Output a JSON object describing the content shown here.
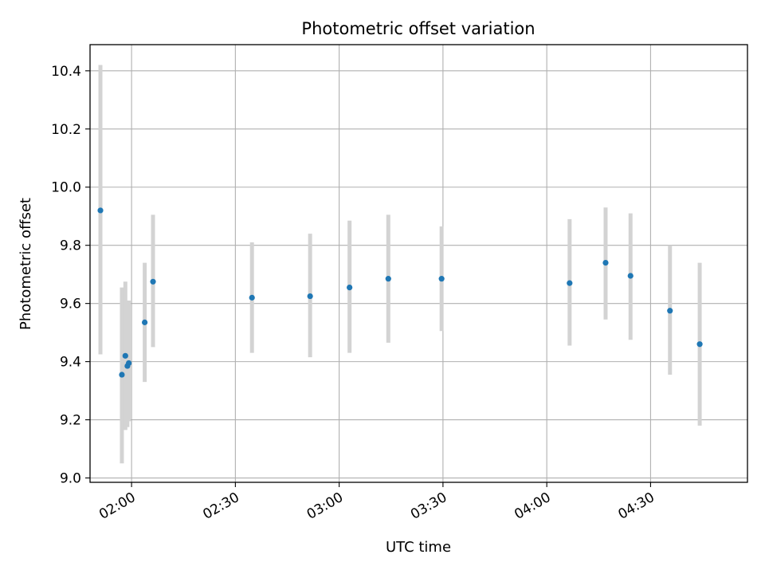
{
  "chart_data": {
    "type": "scatter",
    "title": "Photometric offset variation",
    "xlabel": "UTC time",
    "ylabel": "Photometric offset",
    "x_axis_type": "time",
    "xlim": [
      "01:48",
      "04:58"
    ],
    "ylim": [
      8.985,
      10.49
    ],
    "x_ticks": [
      "02:00",
      "02:30",
      "03:00",
      "03:30",
      "04:00",
      "04:30"
    ],
    "y_ticks": [
      "9.0",
      "9.2",
      "9.4",
      "9.6",
      "9.8",
      "10.0",
      "10.2",
      "10.4"
    ],
    "grid": true,
    "point_color": "#1f77b4",
    "errorbar_color": "#d3d3d3",
    "points": [
      {
        "x": "01:51:00",
        "y": 9.92,
        "err_low": 9.425,
        "err_high": 10.42
      },
      {
        "x": "01:57:12",
        "y": 9.355,
        "err_low": 9.05,
        "err_high": 9.655
      },
      {
        "x": "01:58:12",
        "y": 9.42,
        "err_low": 9.165,
        "err_high": 9.675
      },
      {
        "x": "01:58:48",
        "y": 9.385,
        "err_low": 9.175,
        "err_high": 9.605
      },
      {
        "x": "01:59:12",
        "y": 9.395,
        "err_low": 9.195,
        "err_high": 9.61
      },
      {
        "x": "02:03:48",
        "y": 9.535,
        "err_low": 9.33,
        "err_high": 9.74
      },
      {
        "x": "02:06:12",
        "y": 9.675,
        "err_low": 9.45,
        "err_high": 9.905
      },
      {
        "x": "02:34:48",
        "y": 9.62,
        "err_low": 9.43,
        "err_high": 9.81
      },
      {
        "x": "02:51:36",
        "y": 9.625,
        "err_low": 9.415,
        "err_high": 9.84
      },
      {
        "x": "03:03:00",
        "y": 9.655,
        "err_low": 9.43,
        "err_high": 9.885
      },
      {
        "x": "03:14:12",
        "y": 9.685,
        "err_low": 9.465,
        "err_high": 9.905
      },
      {
        "x": "03:29:36",
        "y": 9.685,
        "err_low": 9.505,
        "err_high": 9.865
      },
      {
        "x": "04:06:36",
        "y": 9.67,
        "err_low": 9.455,
        "err_high": 9.89
      },
      {
        "x": "04:17:00",
        "y": 9.74,
        "err_low": 9.545,
        "err_high": 9.93
      },
      {
        "x": "04:24:12",
        "y": 9.695,
        "err_low": 9.475,
        "err_high": 9.91
      },
      {
        "x": "04:35:36",
        "y": 9.575,
        "err_low": 9.355,
        "err_high": 9.8
      },
      {
        "x": "04:44:12",
        "y": 9.46,
        "err_low": 9.18,
        "err_high": 9.74
      }
    ]
  }
}
